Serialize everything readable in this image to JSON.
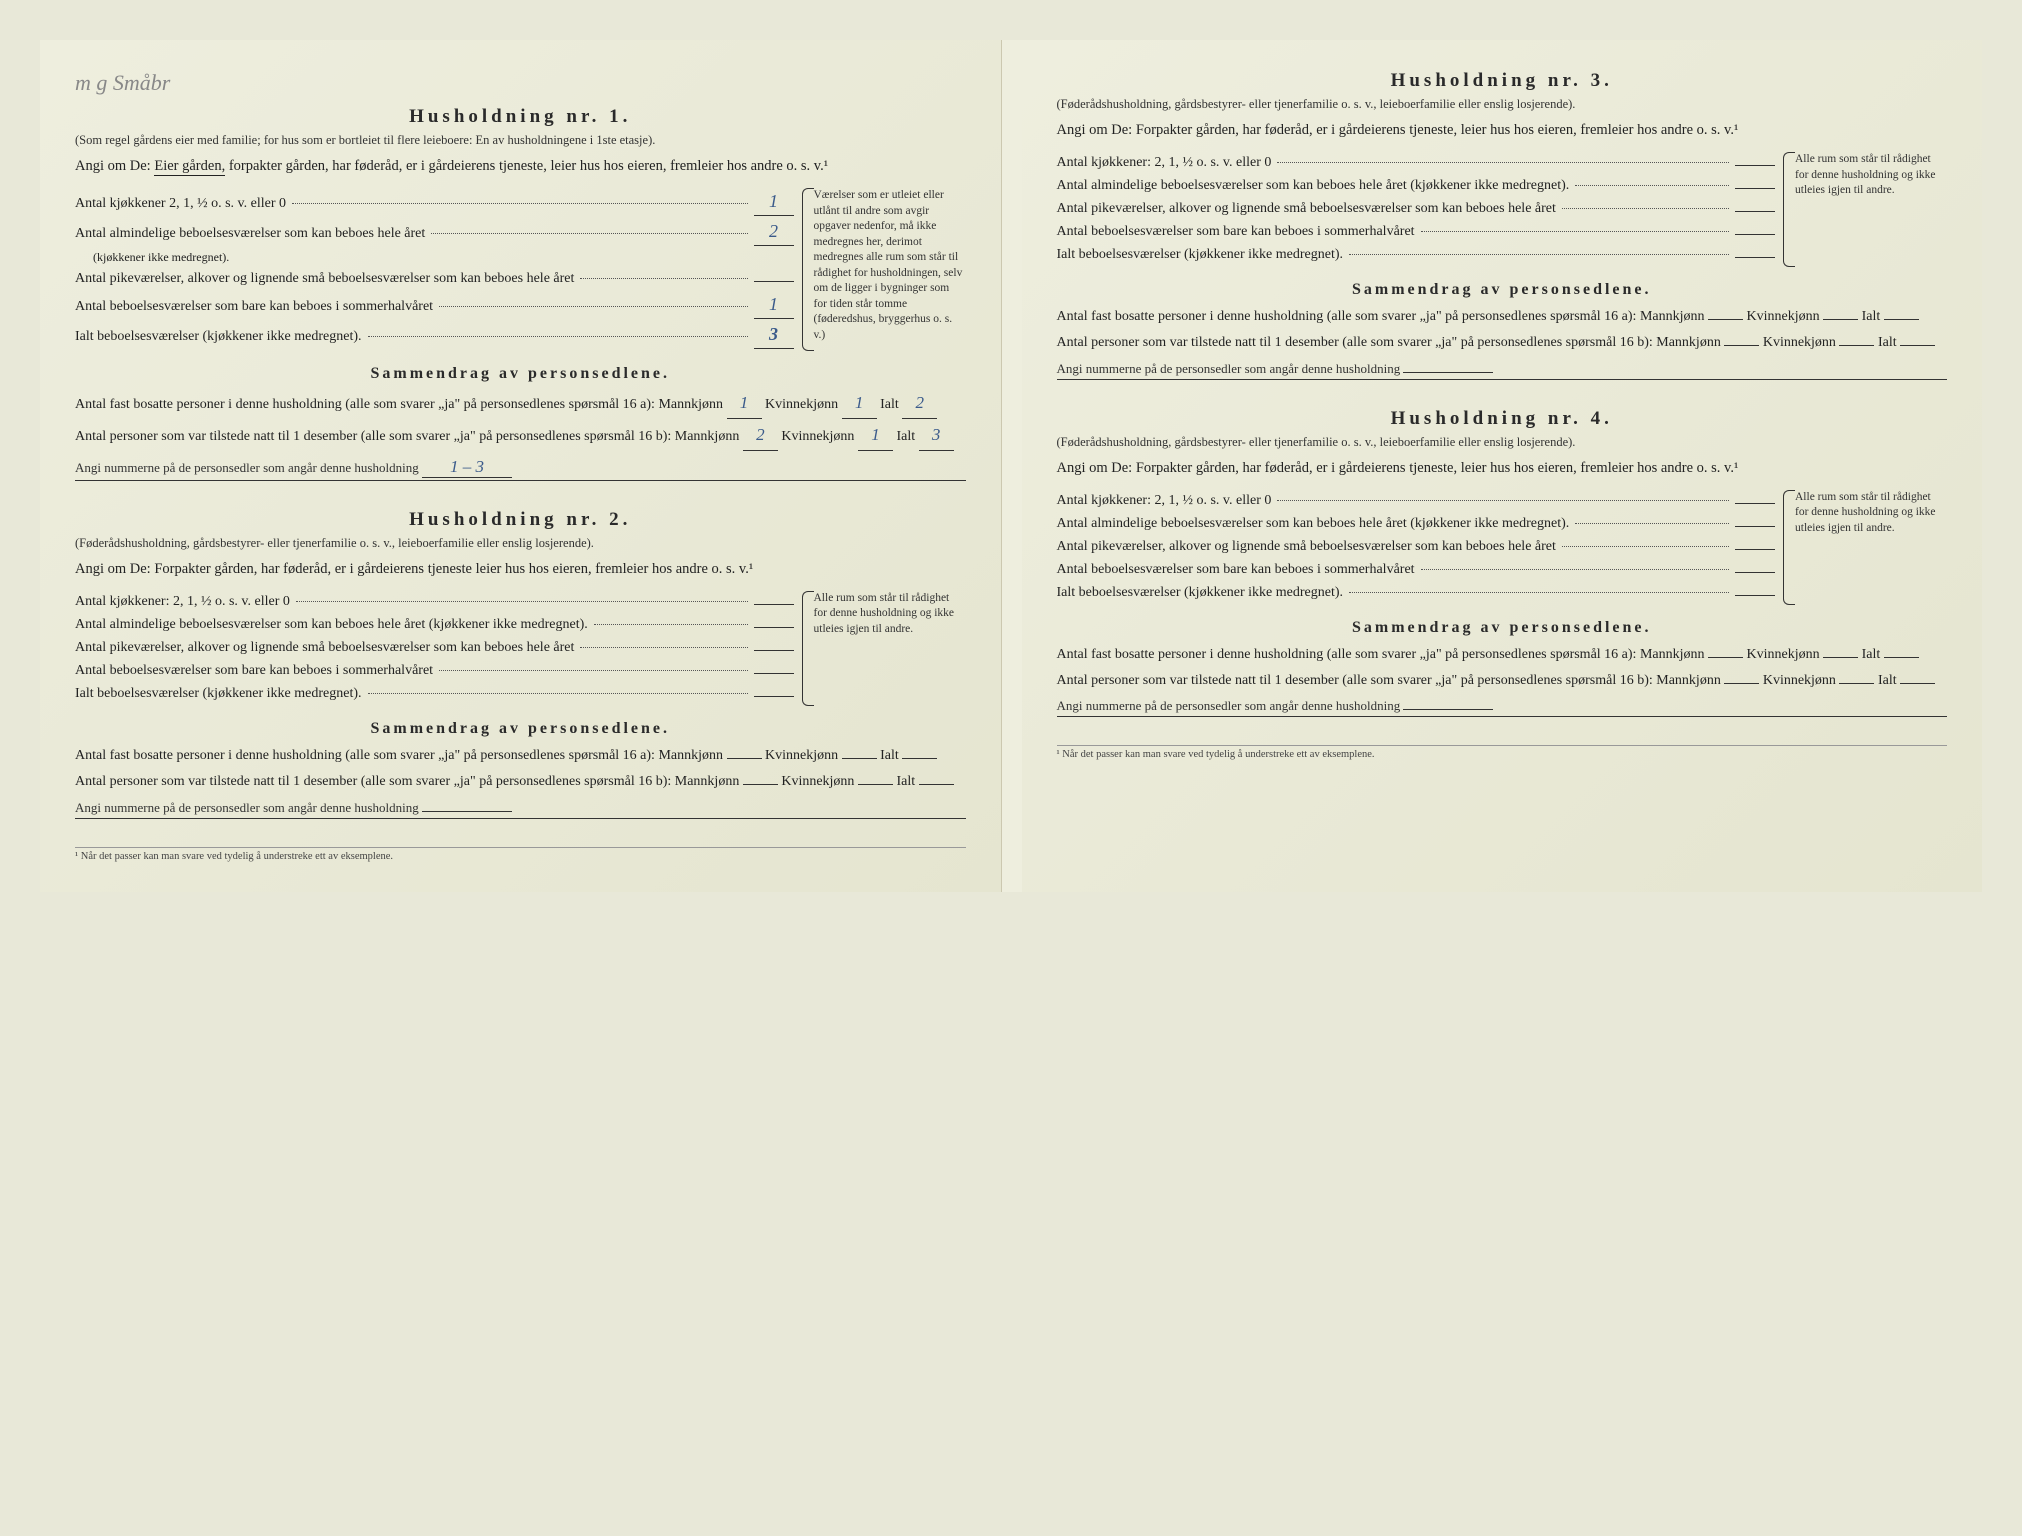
{
  "handwritten_note": "m g Småbr",
  "households": [
    {
      "title": "Husholdning nr. 1.",
      "subtitle": "(Som regel gårdens eier med familie; for hus som er bortleiet til flere leieboere: En av husholdningene i 1ste etasje).",
      "angi_prefix": "Angi om De:",
      "angi_underlined": "Eier gården,",
      "angi_rest": "forpakter gården, har føderåd, er i gårdeierens tjeneste, leier hus hos eieren, fremleier hos andre o. s. v.¹",
      "rooms": {
        "kitchens_label": "Antal kjøkkener 2, 1, ½ o. s. v. eller 0",
        "kitchens": "1",
        "ordinary_label": "Antal almindelige beboelsesværelser som kan beboes hele året",
        "ordinary_sub": "(kjøkkener ikke medregnet).",
        "ordinary": "2",
        "small_label": "Antal pikeværelser, alkover og lignende små beboelsesværelser som kan beboes hele året",
        "small": "",
        "summer_label": "Antal beboelsesværelser som bare kan beboes i sommerhalvåret",
        "summer": "1",
        "total_label": "Ialt beboelsesværelser (kjøkkener ikke medregnet).",
        "total": "3"
      },
      "side_note": "Værelser som er utleiet eller utlånt til andre som avgir opgaver nedenfor, må ikke medregnes her, derimot medregnes alle rum som står til rådighet for husholdningen, selv om de ligger i bygninger som for tiden står tomme (føderedshus, bryggerhus o. s. v.)",
      "summary": {
        "title": "Sammendrag av personsedlene.",
        "line_a_pre": "Antal fast bosatte personer i denne husholdning (alle som svarer „ja\" på personsedlenes spørsmål 16 a): Mannkjønn",
        "a_m": "1",
        "a_k": "1",
        "a_t": "2",
        "line_b_pre": "Antal personer som var tilstede natt til 1 desember (alle som svarer „ja\" på personsedlenes spørsmål 16 b): Mannkjønn",
        "b_m": "2",
        "b_k": "1",
        "b_t": "3",
        "nummer_label": "Angi nummerne på de personsedler som angår denne husholdning",
        "nummer": "1 – 3"
      }
    },
    {
      "title": "Husholdning nr. 2.",
      "subtitle": "(Føderådshusholdning, gårdsbestyrer- eller tjenerfamilie o. s. v., leieboerfamilie eller enslig losjerende).",
      "angi_prefix": "Angi om De:",
      "angi_underlined": "",
      "angi_rest": "Forpakter gården, har føderåd, er i gårdeierens tjeneste leier hus hos eieren, fremleier hos andre o. s. v.¹",
      "rooms": {
        "kitchens_label": "Antal kjøkkener: 2, 1, ½ o. s. v. eller 0",
        "kitchens": "",
        "ordinary_label": "Antal almindelige beboelsesværelser som kan beboes hele året (kjøkkener ikke medregnet).",
        "ordinary_sub": "",
        "ordinary": "",
        "small_label": "Antal pikeværelser, alkover og lignende små beboelsesværelser som kan beboes hele året",
        "small": "",
        "summer_label": "Antal beboelsesværelser som bare kan beboes i sommerhalvåret",
        "summer": "",
        "total_label": "Ialt beboelsesværelser (kjøkkener ikke medregnet).",
        "total": ""
      },
      "side_note": "Alle rum som står til rådighet for denne husholdning og ikke utleies igjen til andre.",
      "summary": {
        "title": "Sammendrag av personsedlene.",
        "line_a_pre": "Antal fast bosatte personer i denne husholdning (alle som svarer „ja\" på personsedlenes spørsmål 16 a): Mannkjønn",
        "a_m": "",
        "a_k": "",
        "a_t": "",
        "line_b_pre": "Antal personer som var tilstede natt til 1 desember (alle som svarer „ja\" på personsedlenes spørsmål 16 b): Mannkjønn",
        "b_m": "",
        "b_k": "",
        "b_t": "",
        "nummer_label": "Angi nummerne på de personsedler som angår denne husholdning",
        "nummer": ""
      }
    },
    {
      "title": "Husholdning nr. 3.",
      "subtitle": "(Føderådshusholdning, gårdsbestyrer- eller tjenerfamilie o. s. v., leieboerfamilie eller enslig losjerende).",
      "angi_prefix": "Angi om De:",
      "angi_underlined": "",
      "angi_rest": "Forpakter gården, har føderåd, er i gårdeierens tjeneste, leier hus hos eieren, fremleier hos andre o. s. v.¹",
      "rooms": {
        "kitchens_label": "Antal kjøkkener: 2, 1, ½ o. s. v. eller 0",
        "kitchens": "",
        "ordinary_label": "Antal almindelige beboelsesværelser som kan beboes hele året (kjøkkener ikke medregnet).",
        "ordinary_sub": "",
        "ordinary": "",
        "small_label": "Antal pikeværelser, alkover og lignende små beboelsesværelser som kan beboes hele året",
        "small": "",
        "summer_label": "Antal beboelsesværelser som bare kan beboes i sommerhalvåret",
        "summer": "",
        "total_label": "Ialt beboelsesværelser (kjøkkener ikke medregnet).",
        "total": ""
      },
      "side_note": "Alle rum som står til rådighet for denne husholdning og ikke utleies igjen til andre.",
      "summary": {
        "title": "Sammendrag av personsedlene.",
        "line_a_pre": "Antal fast bosatte personer i denne husholdning (alle som svarer „ja\" på personsedlenes spørsmål 16 a): Mannkjønn",
        "a_m": "",
        "a_k": "",
        "a_t": "",
        "line_b_pre": "Antal personer som var tilstede natt til 1 desember (alle som svarer „ja\" på personsedlenes spørsmål 16 b): Mannkjønn",
        "b_m": "",
        "b_k": "",
        "b_t": "",
        "nummer_label": "Angi nummerne på de personsedler som angår denne husholdning",
        "nummer": ""
      }
    },
    {
      "title": "Husholdning nr. 4.",
      "subtitle": "(Føderådshusholdning, gårdsbestyrer- eller tjenerfamilie o. s. v., leieboerfamilie eller enslig losjerende).",
      "angi_prefix": "Angi om De:",
      "angi_underlined": "",
      "angi_rest": "Forpakter gården, har føderåd, er i gårdeierens tjeneste, leier hus hos eieren, fremleier hos andre o. s. v.¹",
      "rooms": {
        "kitchens_label": "Antal kjøkkener: 2, 1, ½ o. s. v. eller 0",
        "kitchens": "",
        "ordinary_label": "Antal almindelige beboelsesværelser som kan beboes hele året (kjøkkener ikke medregnet).",
        "ordinary_sub": "",
        "ordinary": "",
        "small_label": "Antal pikeværelser, alkover og lignende små beboelsesværelser som kan beboes hele året",
        "small": "",
        "summer_label": "Antal beboelsesværelser som bare kan beboes i sommerhalvåret",
        "summer": "",
        "total_label": "Ialt beboelsesværelser (kjøkkener ikke medregnet).",
        "total": ""
      },
      "side_note": "Alle rum som står til rådighet for denne husholdning og ikke utleies igjen til andre.",
      "summary": {
        "title": "Sammendrag av personsedlene.",
        "line_a_pre": "Antal fast bosatte personer i denne husholdning (alle som svarer „ja\" på personsedlenes spørsmål 16 a): Mannkjønn",
        "a_m": "",
        "a_k": "",
        "a_t": "",
        "line_b_pre": "Antal personer som var tilstede natt til 1 desember (alle som svarer „ja\" på personsedlenes spørsmål 16 b): Mannkjønn",
        "b_m": "",
        "b_k": "",
        "b_t": "",
        "nummer_label": "Angi nummerne på de personsedler som angår denne husholdning",
        "nummer": ""
      }
    }
  ],
  "labels": {
    "kvinne": "Kvinnekjønn",
    "ialt": "Ialt"
  },
  "footnote": "¹ Når det passer kan man svare ved tydelig å understreke ett av eksemplene."
}
